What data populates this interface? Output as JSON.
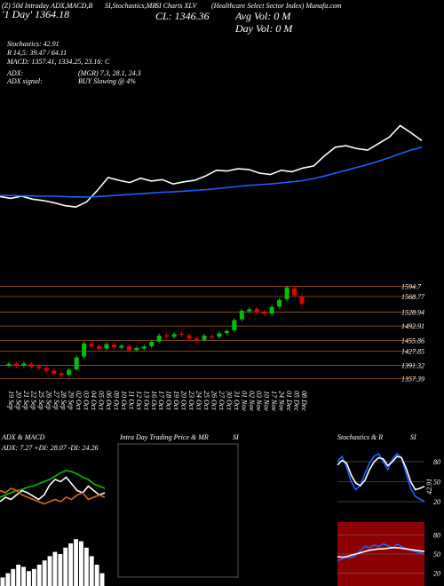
{
  "header": {
    "line1": [
      "(Z) 50d Intraday ADX,MACD,B",
      "SI,Stochastics,MR",
      "SI Charts XLV",
      "(Healthcare Select Sector Index) Munafa.com"
    ],
    "day": "'1 Day' 1364.18",
    "cl": "CL: 1346.36",
    "avg_vol": "Avg Vol: 0 M",
    "day_vol": "Day Vol: 0 M",
    "stochastics": "Stochastics: 42.91",
    "r": "R 14,5: 39.47 / 64.11",
    "macd": "MACD: 1357.41, 1334.25, 23.16: C",
    "adx": "ADX:",
    "adx_mgr": "(MGR) 7.3, 28.1, 24.3",
    "adx_signal": "ADX signal:",
    "buy": "BUY Slowing @ 4%"
  },
  "chart_data": [
    {
      "type": "line",
      "ylim": [
        1300,
        1620
      ],
      "series": [
        {
          "color": "#ffffff",
          "values": [
            1395,
            1390,
            1396,
            1388,
            1384,
            1378,
            1370,
            1366,
            1380,
            1412,
            1448,
            1440,
            1434,
            1446,
            1438,
            1442,
            1430,
            1436,
            1440,
            1452,
            1468,
            1466,
            1472,
            1470,
            1460,
            1456,
            1468,
            1464,
            1474,
            1480,
            1508,
            1532,
            1536,
            1528,
            1524,
            1542,
            1560,
            1592,
            1572,
            1550
          ]
        },
        {
          "color": "#1f5fff",
          "values": [
            1398,
            1398,
            1397,
            1397,
            1396,
            1396,
            1395,
            1394,
            1394,
            1395,
            1397,
            1399,
            1401,
            1403,
            1405,
            1407,
            1408,
            1410,
            1412,
            1414,
            1417,
            1420,
            1423,
            1426,
            1428,
            1430,
            1433,
            1436,
            1439,
            1445,
            1452,
            1460,
            1468,
            1476,
            1484,
            1493,
            1503,
            1514,
            1524,
            1532
          ]
        }
      ]
    },
    {
      "type": "candlestick",
      "ylim": [
        1340,
        1610
      ],
      "yticks": [
        1594.7,
        1568.77,
        1528.94,
        1492.91,
        1455.86,
        1427.85,
        1391.32,
        1357.39
      ],
      "grid_color": "#a0522d",
      "up_color": "#00c000",
      "down_color": "#e00000",
      "categories": [
        "19 Sep",
        "20 Sep",
        "21 Sep",
        "22 Sep",
        "25 Sep",
        "26 Sep",
        "27 Sep",
        "28 Sep",
        "29 Sep",
        "02 Oct",
        "03 Oct",
        "04 Oct",
        "05 Oct",
        "06 Oct",
        "09 Oct",
        "10 Oct",
        "11 Oct",
        "12 Oct",
        "13 Oct",
        "16 Oct",
        "17 Oct",
        "18 Oct",
        "19 Oct",
        "20 Oct",
        "23 Oct",
        "24 Oct",
        "25 Oct",
        "26 Oct",
        "27 Oct",
        "30 Oct",
        "31 Oct",
        "01 Nov",
        "02 Nov",
        "03 Nov",
        "10 Nov",
        "17 Nov",
        "24 Nov",
        "01 Dec",
        "05 Dec",
        "08 Dec"
      ],
      "open": [
        1392,
        1396,
        1391,
        1395,
        1389,
        1385,
        1378,
        1371,
        1367,
        1381,
        1414,
        1447,
        1441,
        1435,
        1445,
        1437,
        1441,
        1431,
        1435,
        1441,
        1453,
        1469,
        1465,
        1473,
        1469,
        1461,
        1457,
        1467,
        1465,
        1475,
        1482,
        1510,
        1531,
        1537,
        1529,
        1525,
        1543,
        1562,
        1590,
        1570
      ],
      "high": [
        1400,
        1401,
        1401,
        1400,
        1394,
        1390,
        1383,
        1376,
        1385,
        1417,
        1453,
        1452,
        1446,
        1451,
        1450,
        1447,
        1446,
        1441,
        1445,
        1457,
        1473,
        1474,
        1477,
        1478,
        1474,
        1466,
        1473,
        1472,
        1479,
        1485,
        1513,
        1537,
        1541,
        1542,
        1534,
        1547,
        1565,
        1597,
        1595,
        1575
      ],
      "low": [
        1387,
        1385,
        1386,
        1383,
        1379,
        1373,
        1365,
        1361,
        1362,
        1376,
        1409,
        1435,
        1429,
        1430,
        1433,
        1432,
        1425,
        1426,
        1430,
        1436,
        1448,
        1461,
        1460,
        1465,
        1455,
        1451,
        1452,
        1459,
        1460,
        1470,
        1477,
        1505,
        1526,
        1523,
        1519,
        1520,
        1538,
        1557,
        1567,
        1545
      ],
      "close": [
        1395,
        1390,
        1396,
        1388,
        1384,
        1378,
        1370,
        1366,
        1380,
        1412,
        1448,
        1440,
        1434,
        1446,
        1438,
        1442,
        1430,
        1436,
        1440,
        1452,
        1468,
        1466,
        1472,
        1470,
        1460,
        1456,
        1468,
        1464,
        1474,
        1480,
        1508,
        1532,
        1536,
        1528,
        1524,
        1542,
        1560,
        1592,
        1572,
        1550
      ]
    },
    {
      "type": "line",
      "title": "ADX & MACD",
      "subtitle": "ADX: 7.27 +DI: 28.07 -DI: 24.26",
      "ylim": [
        0,
        60
      ],
      "series": [
        {
          "color": "#00c000",
          "values": [
            24,
            26,
            28,
            30,
            31,
            33,
            34,
            36,
            38,
            40,
            43,
            46,
            48,
            47,
            45,
            42,
            40,
            36,
            34,
            32
          ]
        },
        {
          "color": "#ffffff",
          "values": [
            20,
            24,
            22,
            26,
            30,
            28,
            25,
            22,
            26,
            35,
            40,
            38,
            42,
            36,
            30,
            28,
            34,
            30,
            26,
            28
          ]
        },
        {
          "color": "#d2691e",
          "values": [
            30,
            28,
            32,
            30,
            26,
            24,
            22,
            20,
            18,
            20,
            22,
            20,
            24,
            22,
            26,
            28,
            22,
            24,
            26,
            24
          ]
        }
      ]
    },
    {
      "type": "bar",
      "ylim": [
        0,
        25
      ],
      "color": "#ffffff",
      "values": [
        4,
        6,
        8,
        10,
        9,
        7,
        8,
        10,
        12,
        14,
        16,
        15,
        18,
        20,
        22,
        21,
        18,
        14,
        10,
        6
      ]
    },
    {
      "type": "line",
      "title": "Intra Day Trading Price & MR",
      "title_end": "SI",
      "series": []
    },
    {
      "type": "line",
      "title": "Stochastics & R",
      "title_end": "SI",
      "ylim": [
        0,
        100
      ],
      "yticks": [
        20,
        50,
        80
      ],
      "series": [
        {
          "color": "#1f5fff",
          "values": [
            80,
            88,
            72,
            50,
            38,
            44,
            62,
            78,
            88,
            92,
            80,
            68,
            84,
            92,
            86,
            62,
            40,
            28,
            24,
            20
          ]
        },
        {
          "color": "#ffffff",
          "values": [
            75,
            82,
            78,
            60,
            48,
            44,
            52,
            68,
            80,
            86,
            84,
            74,
            80,
            88,
            86,
            70,
            50,
            38,
            40,
            42.91
          ]
        }
      ]
    },
    {
      "type": "line",
      "ylim": [
        0,
        100
      ],
      "yticks": [
        20,
        50,
        80
      ],
      "background": "#8b0000",
      "series": [
        {
          "color": "#1f5fff",
          "values": [
            40,
            42,
            45,
            44,
            48,
            55,
            62,
            60,
            64,
            62,
            66,
            63,
            60,
            65,
            62,
            58,
            56,
            54,
            52,
            50
          ]
        },
        {
          "color": "#ffffff",
          "values": [
            46,
            45,
            46,
            48,
            50,
            52,
            54,
            56,
            57,
            58,
            58,
            59,
            60,
            60,
            59,
            58,
            57,
            56,
            55,
            54
          ]
        }
      ]
    }
  ]
}
